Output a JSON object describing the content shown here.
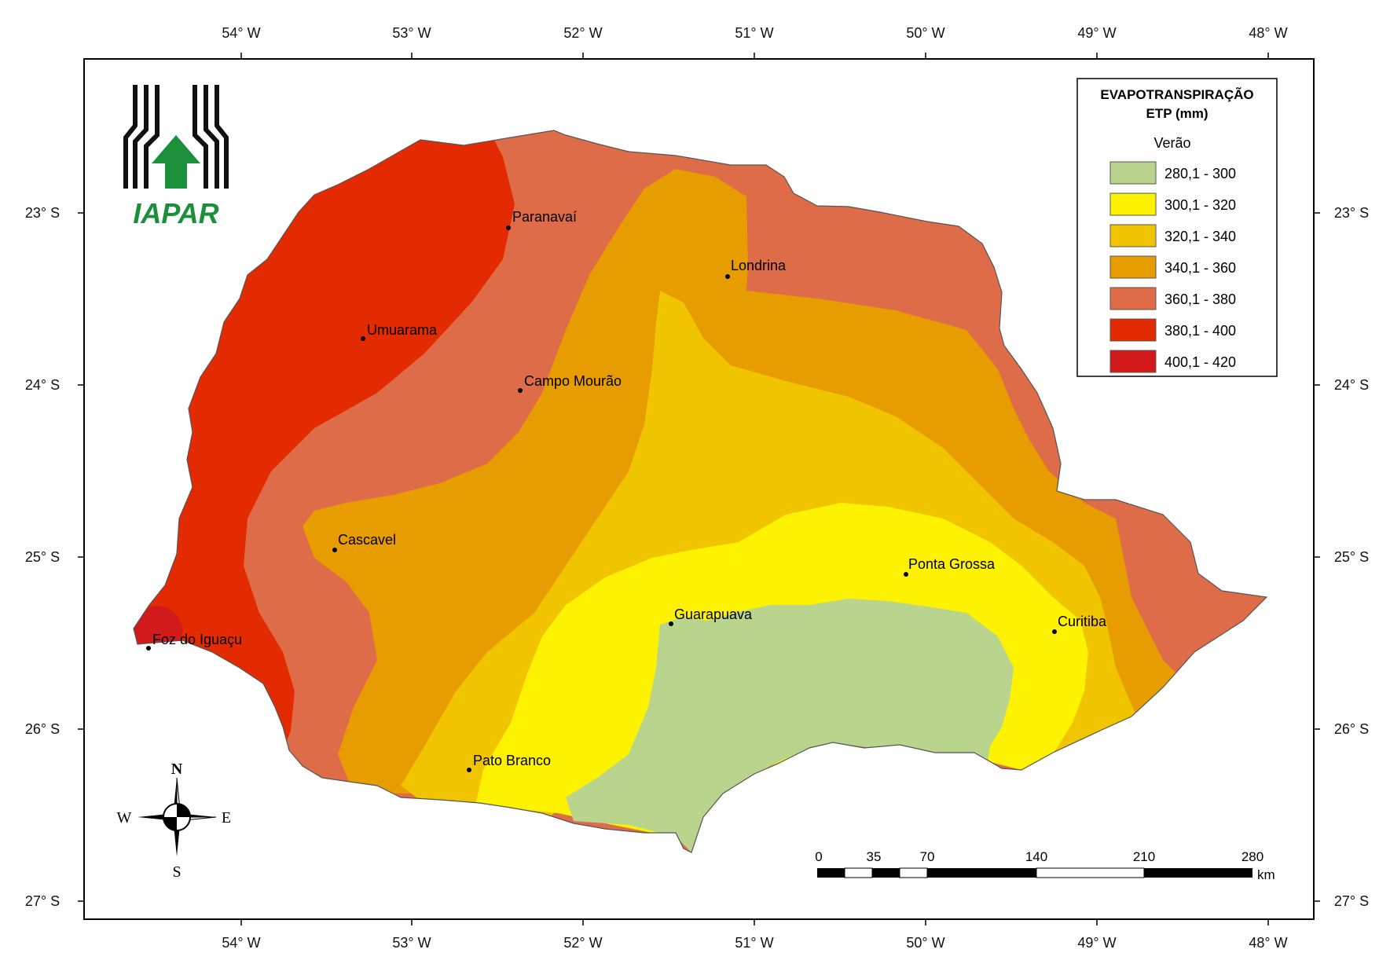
{
  "axes": {
    "longitudes": [
      "54° W",
      "53° W",
      "52° W",
      "51° W",
      "50° W",
      "49° W",
      "48° W"
    ],
    "latitudes": [
      "23° S",
      "24° S",
      "25° S",
      "26° S",
      "27° S"
    ]
  },
  "logo": {
    "text": "IAPAR"
  },
  "legend": {
    "title_line1": "EVAPOTRANSPIRAÇÃO",
    "title_line2": "ETP (mm)",
    "season": "Verão",
    "classes": [
      {
        "label": "280,1 - 300",
        "color": "#b9d48c"
      },
      {
        "label": "300,1 - 320",
        "color": "#fdf200"
      },
      {
        "label": "320,1 - 340",
        "color": "#f1c400"
      },
      {
        "label": "340,1 - 360",
        "color": "#e79c00"
      },
      {
        "label": "360,1 - 380",
        "color": "#df6c48"
      },
      {
        "label": "380,1 - 400",
        "color": "#e42a00"
      },
      {
        "label": "400,1 - 420",
        "color": "#d21a1a"
      }
    ]
  },
  "cities": [
    {
      "name": "Paranavaí"
    },
    {
      "name": "Londrina"
    },
    {
      "name": "Umuarama"
    },
    {
      "name": "Campo Mourão"
    },
    {
      "name": "Cascavel"
    },
    {
      "name": "Ponta Grossa"
    },
    {
      "name": "Guarapuava"
    },
    {
      "name": "Curitiba"
    },
    {
      "name": "Foz do Iguaçu"
    },
    {
      "name": "Pato Branco"
    }
  ],
  "scale_bar": {
    "ticks": [
      "0",
      "35",
      "70",
      "140",
      "210",
      "280"
    ],
    "unit": "km"
  },
  "compass": {
    "n": "N",
    "s": "S",
    "e": "E",
    "w": "W"
  }
}
